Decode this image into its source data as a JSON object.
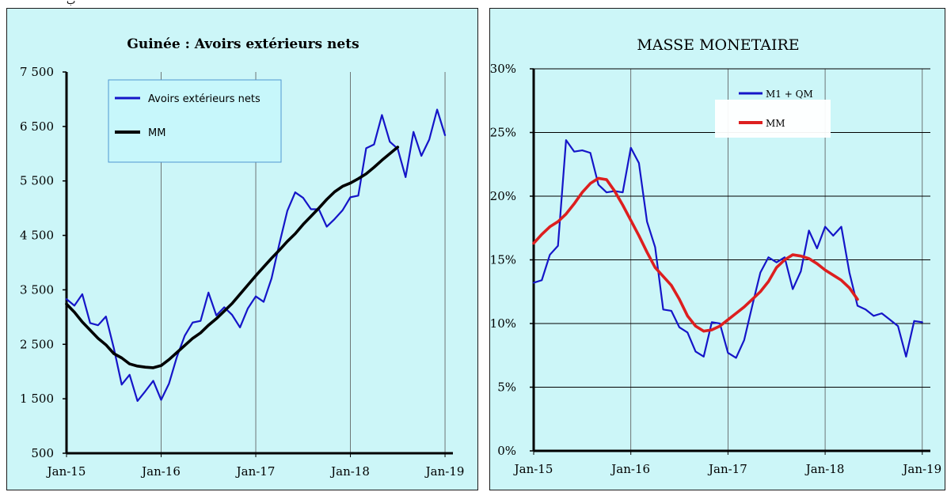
{
  "chart_data": [
    {
      "type": "line",
      "title": "Guinée : Avoirs extérieurs nets",
      "x_ticks": [
        "Jan-15",
        "Jan-16",
        "Jan-17",
        "Jan-18",
        "Jan-19"
      ],
      "y_ticks": [
        "7 500",
        "6 500",
        "5 500",
        "4 500",
        "3 500",
        "2 500",
        "1 500",
        "500"
      ],
      "ylim": [
        500,
        7500
      ],
      "xlim": [
        0,
        49
      ],
      "grid": "vertical",
      "legend_position": "top-left",
      "series": [
        {
          "name": "Avoirs extérieurs nets",
          "color": "#1515c8",
          "values": [
            3330,
            3210,
            3420,
            2890,
            2850,
            3010,
            2430,
            1760,
            1940,
            1460,
            1640,
            1830,
            1480,
            1780,
            2270,
            2660,
            2900,
            2930,
            3450,
            3030,
            3180,
            3040,
            2810,
            3160,
            3380,
            3280,
            3710,
            4350,
            4950,
            5290,
            5190,
            4980,
            4980,
            4660,
            4800,
            4960,
            5200,
            5230,
            6100,
            6170,
            6710,
            6220,
            6090,
            5570,
            6400,
            5960,
            6260,
            6810,
            6340
          ]
        },
        {
          "name": "MM",
          "color": "#000000",
          "values": [
            3240,
            3090,
            2910,
            2760,
            2610,
            2490,
            2330,
            2250,
            2140,
            2100,
            2080,
            2070,
            2110,
            2220,
            2350,
            2480,
            2610,
            2710,
            2850,
            2970,
            3110,
            3250,
            3420,
            3590,
            3760,
            3920,
            4080,
            4230,
            4390,
            4530,
            4700,
            4850,
            5000,
            5160,
            5300,
            5400,
            5460,
            5540,
            5630,
            5750,
            5880,
            6000,
            6120
          ]
        }
      ]
    },
    {
      "type": "line",
      "title": "MASSE MONETAIRE",
      "x_ticks": [
        "Jan-15",
        "Jan-16",
        "Jan-17",
        "Jan-18",
        "Jan-19"
      ],
      "y_ticks": [
        "30%",
        "25%",
        "20%",
        "15%",
        "10%",
        "5%",
        "0%"
      ],
      "ylim": [
        0,
        30
      ],
      "xlim": [
        0,
        49
      ],
      "grid": "both",
      "legend_position": "top-right",
      "series": [
        {
          "name": "M1 + QM",
          "color": "#1515c8",
          "values": [
            13.2,
            13.4,
            15.4,
            16.1,
            24.4,
            23.5,
            23.6,
            23.4,
            20.9,
            20.3,
            20.4,
            20.3,
            23.8,
            22.6,
            18.0,
            16.0,
            11.1,
            11.0,
            9.7,
            9.3,
            7.8,
            7.4,
            10.1,
            10.0,
            7.7,
            7.3,
            8.7,
            11.4,
            14.0,
            15.2,
            14.8,
            15.2,
            12.7,
            14.1,
            17.3,
            15.9,
            17.6,
            16.9,
            17.6,
            14.0,
            11.4,
            11.1,
            10.6,
            10.8,
            10.3,
            9.8,
            7.4,
            10.2,
            10.1
          ]
        },
        {
          "name": "MM",
          "color": "#dd1f1f",
          "values": [
            16.3,
            17.0,
            17.6,
            18.0,
            18.6,
            19.4,
            20.3,
            21.0,
            21.4,
            21.3,
            20.4,
            19.3,
            18.1,
            16.9,
            15.6,
            14.4,
            13.7,
            13.0,
            11.9,
            10.6,
            9.8,
            9.4,
            9.5,
            9.8,
            10.3,
            10.8,
            11.3,
            11.9,
            12.5,
            13.3,
            14.4,
            15.0,
            15.4,
            15.3,
            15.1,
            14.7,
            14.2,
            13.8,
            13.4,
            12.8,
            11.9
          ]
        }
      ]
    }
  ]
}
